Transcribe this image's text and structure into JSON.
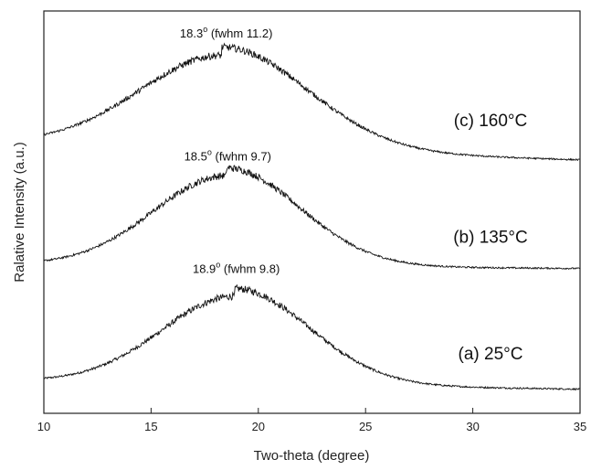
{
  "chart_data": {
    "type": "line",
    "xlabel": "Two-theta (degree)",
    "ylabel": "Ralative Intensity (a.u.)",
    "xlim": [
      10,
      35
    ],
    "x_ticks": [
      "10",
      "15",
      "20",
      "25",
      "30",
      "35"
    ],
    "y_ticks": [],
    "grid": false,
    "series": [
      {
        "name": "(a) 25",
        "name_unit": "°C",
        "peak_label": "18.9",
        "peak_label_sup": "o",
        "peak_label_rest": " (fwhm 9.8)",
        "peak_x": 18.9,
        "fwhm": 9.8,
        "start_level": 0.08,
        "end_level": 0.06,
        "peak_level": 0.31
      },
      {
        "name": "(b) 135",
        "name_unit": "°C",
        "peak_label": "18.5",
        "peak_label_sup": "o",
        "peak_label_rest": " (fwhm 9.7)",
        "peak_x": 18.5,
        "fwhm": 9.7,
        "start_level": 0.37,
        "end_level": 0.36,
        "peak_level": 0.61
      },
      {
        "name": "(c) 160",
        "name_unit": "°C",
        "peak_label": "18.3",
        "peak_label_sup": "o",
        "peak_label_rest": " (fwhm 11.2)",
        "peak_x": 18.3,
        "fwhm": 11.2,
        "start_level": 0.67,
        "end_level": 0.63,
        "peak_level": 0.91
      }
    ]
  }
}
